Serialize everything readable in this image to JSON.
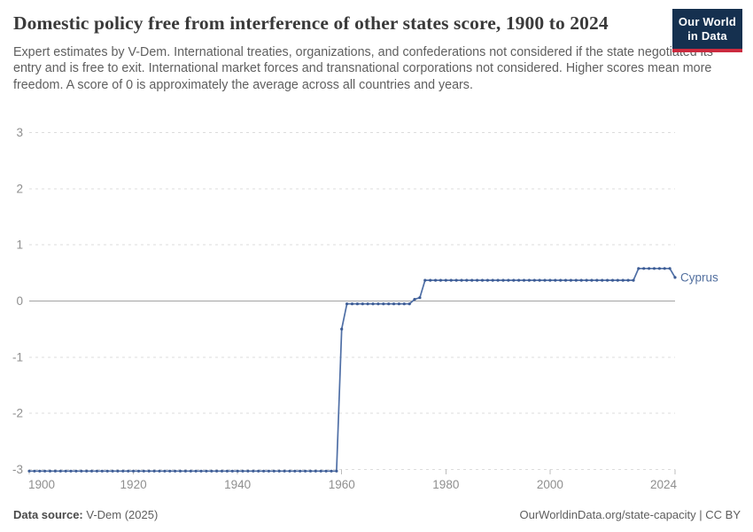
{
  "header": {
    "title": "Domestic policy free from interference of other states score, 1900 to 2024",
    "subtitle": "Expert estimates by V-Dem. International treaties, organizations, and confederations not considered if the state negotiated its entry and is free to exit. International market forces and transnational corporations not considered. Higher scores mean more freedom. A score of 0 is approximately the average across all countries and years.",
    "logo": {
      "line1": "Our World",
      "line2": "in Data",
      "bg_color": "#15304f",
      "stripe_color": "#cc2b3f"
    }
  },
  "footer": {
    "source_label": "Data source:",
    "source_value": " V-Dem (2025)",
    "right_text": "OurWorldinData.org/state-capacity | CC BY"
  },
  "chart_data": {
    "type": "line",
    "title": "Domestic policy free from interference of other states score, 1900 to 2024",
    "xlabel": "",
    "ylabel": "",
    "xlim": [
      1900,
      2024
    ],
    "ylim": [
      -3.2,
      3
    ],
    "x_ticks": [
      1900,
      1920,
      1940,
      1960,
      1980,
      2000,
      2024
    ],
    "y_ticks": [
      3,
      2,
      1,
      0,
      -1,
      -2,
      -3
    ],
    "grid": "dashed horizontal, solid zero line",
    "legend_position": "end-of-line label",
    "series": [
      {
        "name": "Cyprus",
        "line_color": "#4f6fa6",
        "marker_color": "#3d5c95",
        "label_color": "#53709f",
        "points": [
          [
            1900,
            -3.03
          ],
          [
            1901,
            -3.03
          ],
          [
            1902,
            -3.03
          ],
          [
            1903,
            -3.03
          ],
          [
            1904,
            -3.03
          ],
          [
            1905,
            -3.03
          ],
          [
            1906,
            -3.03
          ],
          [
            1907,
            -3.03
          ],
          [
            1908,
            -3.03
          ],
          [
            1909,
            -3.03
          ],
          [
            1910,
            -3.03
          ],
          [
            1911,
            -3.03
          ],
          [
            1912,
            -3.03
          ],
          [
            1913,
            -3.03
          ],
          [
            1914,
            -3.03
          ],
          [
            1915,
            -3.03
          ],
          [
            1916,
            -3.03
          ],
          [
            1917,
            -3.03
          ],
          [
            1918,
            -3.03
          ],
          [
            1919,
            -3.03
          ],
          [
            1920,
            -3.03
          ],
          [
            1921,
            -3.03
          ],
          [
            1922,
            -3.03
          ],
          [
            1923,
            -3.03
          ],
          [
            1924,
            -3.03
          ],
          [
            1925,
            -3.03
          ],
          [
            1926,
            -3.03
          ],
          [
            1927,
            -3.03
          ],
          [
            1928,
            -3.03
          ],
          [
            1929,
            -3.03
          ],
          [
            1930,
            -3.03
          ],
          [
            1931,
            -3.03
          ],
          [
            1932,
            -3.03
          ],
          [
            1933,
            -3.03
          ],
          [
            1934,
            -3.03
          ],
          [
            1935,
            -3.03
          ],
          [
            1936,
            -3.03
          ],
          [
            1937,
            -3.03
          ],
          [
            1938,
            -3.03
          ],
          [
            1939,
            -3.03
          ],
          [
            1940,
            -3.03
          ],
          [
            1941,
            -3.03
          ],
          [
            1942,
            -3.03
          ],
          [
            1943,
            -3.03
          ],
          [
            1944,
            -3.03
          ],
          [
            1945,
            -3.03
          ],
          [
            1946,
            -3.03
          ],
          [
            1947,
            -3.03
          ],
          [
            1948,
            -3.03
          ],
          [
            1949,
            -3.03
          ],
          [
            1950,
            -3.03
          ],
          [
            1951,
            -3.03
          ],
          [
            1952,
            -3.03
          ],
          [
            1953,
            -3.03
          ],
          [
            1954,
            -3.03
          ],
          [
            1955,
            -3.03
          ],
          [
            1956,
            -3.03
          ],
          [
            1957,
            -3.03
          ],
          [
            1958,
            -3.03
          ],
          [
            1959,
            -3.03
          ],
          [
            1960,
            -0.5
          ],
          [
            1961,
            -0.05
          ],
          [
            1962,
            -0.05
          ],
          [
            1963,
            -0.05
          ],
          [
            1964,
            -0.05
          ],
          [
            1965,
            -0.05
          ],
          [
            1966,
            -0.05
          ],
          [
            1967,
            -0.05
          ],
          [
            1968,
            -0.05
          ],
          [
            1969,
            -0.05
          ],
          [
            1970,
            -0.05
          ],
          [
            1971,
            -0.05
          ],
          [
            1972,
            -0.05
          ],
          [
            1973,
            -0.05
          ],
          [
            1974,
            0.03
          ],
          [
            1975,
            0.06
          ],
          [
            1976,
            0.37
          ],
          [
            1977,
            0.37
          ],
          [
            1978,
            0.37
          ],
          [
            1979,
            0.37
          ],
          [
            1980,
            0.37
          ],
          [
            1981,
            0.37
          ],
          [
            1982,
            0.37
          ],
          [
            1983,
            0.37
          ],
          [
            1984,
            0.37
          ],
          [
            1985,
            0.37
          ],
          [
            1986,
            0.37
          ],
          [
            1987,
            0.37
          ],
          [
            1988,
            0.37
          ],
          [
            1989,
            0.37
          ],
          [
            1990,
            0.37
          ],
          [
            1991,
            0.37
          ],
          [
            1992,
            0.37
          ],
          [
            1993,
            0.37
          ],
          [
            1994,
            0.37
          ],
          [
            1995,
            0.37
          ],
          [
            1996,
            0.37
          ],
          [
            1997,
            0.37
          ],
          [
            1998,
            0.37
          ],
          [
            1999,
            0.37
          ],
          [
            2000,
            0.37
          ],
          [
            2001,
            0.37
          ],
          [
            2002,
            0.37
          ],
          [
            2003,
            0.37
          ],
          [
            2004,
            0.37
          ],
          [
            2005,
            0.37
          ],
          [
            2006,
            0.37
          ],
          [
            2007,
            0.37
          ],
          [
            2008,
            0.37
          ],
          [
            2009,
            0.37
          ],
          [
            2010,
            0.37
          ],
          [
            2011,
            0.37
          ],
          [
            2012,
            0.37
          ],
          [
            2013,
            0.37
          ],
          [
            2014,
            0.37
          ],
          [
            2015,
            0.37
          ],
          [
            2016,
            0.37
          ],
          [
            2017,
            0.58
          ],
          [
            2018,
            0.58
          ],
          [
            2019,
            0.58
          ],
          [
            2020,
            0.58
          ],
          [
            2021,
            0.58
          ],
          [
            2022,
            0.58
          ],
          [
            2023,
            0.58
          ],
          [
            2024,
            0.42
          ]
        ]
      }
    ]
  }
}
